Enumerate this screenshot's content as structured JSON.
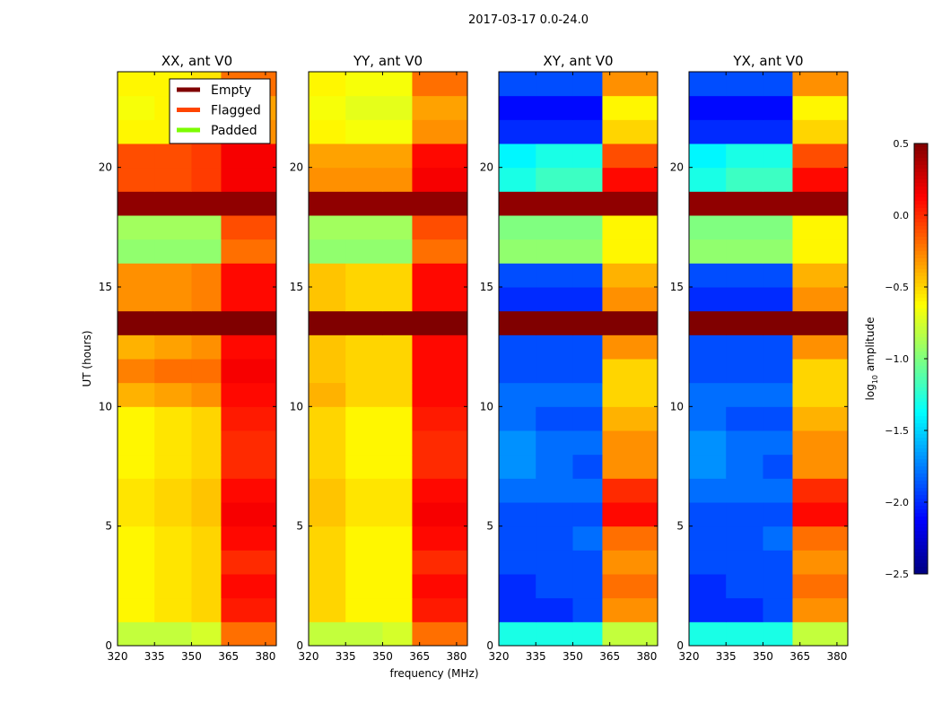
{
  "chart_data": {
    "type": "heatmap",
    "title": "2017-03-17 0.0-24.0",
    "xlabel": "frequency (MHz)",
    "ylabel": "UT (hours)",
    "xlim": [
      320,
      384.4
    ],
    "ylim": [
      0,
      24
    ],
    "xticks": [
      "320",
      "335",
      "350",
      "365",
      "380"
    ],
    "xtick_values": [
      320,
      335,
      350,
      365,
      380
    ],
    "yticks": [
      "0",
      "5",
      "10",
      "15",
      "20"
    ],
    "ytick_values": [
      0,
      5,
      10,
      15,
      20
    ],
    "freq_bands": [
      [
        320,
        335
      ],
      [
        335,
        350
      ],
      [
        350,
        362
      ],
      [
        362,
        384.4
      ]
    ],
    "hour_rows_note": "rows are hours 0-23, columns are freq_bands; values are approximate log10 amplitude",
    "colorbar": {
      "label": "log",
      "label_sub": "10",
      "label_rest": " amplitude",
      "range": [
        -2.5,
        0.5
      ],
      "ticks": [
        "0.5",
        "0.0",
        "−0.5",
        "−1.0",
        "−1.5",
        "−2.0",
        "−2.5"
      ],
      "tick_values": [
        0.5,
        0.0,
        -0.5,
        -1.0,
        -1.5,
        -2.0,
        -2.5
      ]
    },
    "legend": {
      "placement": "top-right of first panel",
      "entries": [
        {
          "label": "Empty",
          "color": "#800000"
        },
        {
          "label": "Flagged",
          "color": "#ff4500"
        },
        {
          "label": "Padded",
          "color": "#7cfc00"
        }
      ]
    },
    "panels": [
      {
        "title": "XX, ant V0",
        "values": [
          [
            -0.8,
            -0.8,
            -0.75,
            -0.2
          ],
          [
            -0.6,
            -0.55,
            -0.5,
            0.05
          ],
          [
            -0.6,
            -0.55,
            -0.5,
            0.1
          ],
          [
            -0.6,
            -0.55,
            -0.5,
            0.0
          ],
          [
            -0.6,
            -0.55,
            -0.5,
            0.1
          ],
          [
            -0.55,
            -0.5,
            -0.45,
            0.15
          ],
          [
            -0.55,
            -0.5,
            -0.45,
            0.1
          ],
          [
            -0.6,
            -0.55,
            -0.5,
            0.0
          ],
          [
            -0.6,
            -0.55,
            -0.5,
            0.0
          ],
          [
            -0.6,
            -0.55,
            -0.5,
            0.05
          ],
          [
            -0.4,
            -0.35,
            -0.3,
            0.1
          ],
          [
            -0.25,
            -0.2,
            -0.2,
            0.15
          ],
          [
            -0.4,
            -0.35,
            -0.3,
            0.1
          ],
          [
            0.5,
            0.5,
            0.5,
            0.5
          ],
          [
            -0.3,
            -0.3,
            -0.25,
            0.1
          ],
          [
            -0.3,
            -0.3,
            -0.25,
            0.1
          ],
          [
            -0.95,
            -0.95,
            -0.95,
            -0.2
          ],
          [
            -0.9,
            -0.9,
            -0.9,
            -0.1
          ],
          [
            0.45,
            0.45,
            0.45,
            0.45
          ],
          [
            -0.1,
            -0.1,
            -0.05,
            0.15
          ],
          [
            -0.1,
            -0.1,
            -0.05,
            0.15
          ],
          [
            -0.6,
            -0.6,
            -0.55,
            -0.3
          ],
          [
            -0.65,
            -0.6,
            -0.6,
            -0.35
          ],
          [
            -0.6,
            -0.6,
            -0.55,
            -0.2
          ]
        ]
      },
      {
        "title": "YY, ant V0",
        "values": [
          [
            -0.8,
            -0.8,
            -0.75,
            -0.2
          ],
          [
            -0.5,
            -0.6,
            -0.6,
            0.05
          ],
          [
            -0.5,
            -0.6,
            -0.6,
            0.1
          ],
          [
            -0.5,
            -0.6,
            -0.6,
            0.0
          ],
          [
            -0.5,
            -0.6,
            -0.6,
            0.1
          ],
          [
            -0.45,
            -0.55,
            -0.55,
            0.15
          ],
          [
            -0.45,
            -0.55,
            -0.55,
            0.1
          ],
          [
            -0.5,
            -0.6,
            -0.6,
            0.0
          ],
          [
            -0.5,
            -0.6,
            -0.6,
            0.0
          ],
          [
            -0.5,
            -0.6,
            -0.6,
            0.05
          ],
          [
            -0.4,
            -0.5,
            -0.5,
            0.1
          ],
          [
            -0.45,
            -0.5,
            -0.5,
            0.1
          ],
          [
            -0.45,
            -0.5,
            -0.5,
            0.1
          ],
          [
            0.5,
            0.5,
            0.5,
            0.5
          ],
          [
            -0.45,
            -0.5,
            -0.5,
            0.1
          ],
          [
            -0.45,
            -0.5,
            -0.5,
            0.1
          ],
          [
            -0.95,
            -0.95,
            -0.95,
            -0.2
          ],
          [
            -0.9,
            -0.9,
            -0.9,
            -0.1
          ],
          [
            0.45,
            0.45,
            0.45,
            0.45
          ],
          [
            -0.3,
            -0.3,
            -0.3,
            0.15
          ],
          [
            -0.35,
            -0.35,
            -0.35,
            0.1
          ],
          [
            -0.6,
            -0.65,
            -0.65,
            -0.3
          ],
          [
            -0.65,
            -0.7,
            -0.7,
            -0.35
          ],
          [
            -0.6,
            -0.65,
            -0.65,
            -0.2
          ]
        ]
      },
      {
        "title": "XY, ant V0",
        "values": [
          [
            -1.3,
            -1.3,
            -1.3,
            -0.8
          ],
          [
            -2.0,
            -2.0,
            -1.9,
            -0.3
          ],
          [
            -2.0,
            -1.9,
            -1.9,
            -0.2
          ],
          [
            -1.9,
            -1.9,
            -1.9,
            -0.3
          ],
          [
            -1.9,
            -1.9,
            -1.8,
            -0.2
          ],
          [
            -1.9,
            -1.9,
            -1.9,
            0.1
          ],
          [
            -1.8,
            -1.8,
            -1.8,
            0.0
          ],
          [
            -1.7,
            -1.8,
            -1.9,
            -0.3
          ],
          [
            -1.7,
            -1.8,
            -1.8,
            -0.3
          ],
          [
            -1.8,
            -1.9,
            -1.9,
            -0.4
          ],
          [
            -1.8,
            -1.8,
            -1.8,
            -0.5
          ],
          [
            -1.9,
            -1.9,
            -1.9,
            -0.5
          ],
          [
            -1.9,
            -1.9,
            -1.9,
            -0.3
          ],
          [
            0.5,
            0.5,
            0.5,
            0.5
          ],
          [
            -2.0,
            -2.0,
            -2.0,
            -0.3
          ],
          [
            -1.9,
            -1.9,
            -1.9,
            -0.4
          ],
          [
            -0.95,
            -0.95,
            -0.95,
            -0.6
          ],
          [
            -1.0,
            -1.0,
            -1.0,
            -0.6
          ],
          [
            0.45,
            0.45,
            0.45,
            0.45
          ],
          [
            -1.3,
            -1.2,
            -1.2,
            0.1
          ],
          [
            -1.4,
            -1.3,
            -1.3,
            -0.1
          ],
          [
            -2.0,
            -2.0,
            -2.0,
            -0.5
          ],
          [
            -2.1,
            -2.1,
            -2.1,
            -0.6
          ],
          [
            -1.9,
            -1.9,
            -1.9,
            -0.3
          ]
        ]
      },
      {
        "title": "YX, ant V0",
        "values": [
          [
            -1.3,
            -1.3,
            -1.3,
            -0.8
          ],
          [
            -2.0,
            -2.0,
            -1.9,
            -0.3
          ],
          [
            -2.0,
            -1.9,
            -1.9,
            -0.2
          ],
          [
            -1.9,
            -1.9,
            -1.9,
            -0.3
          ],
          [
            -1.9,
            -1.9,
            -1.8,
            -0.2
          ],
          [
            -1.9,
            -1.9,
            -1.9,
            0.1
          ],
          [
            -1.8,
            -1.8,
            -1.8,
            0.0
          ],
          [
            -1.7,
            -1.8,
            -1.9,
            -0.3
          ],
          [
            -1.7,
            -1.8,
            -1.8,
            -0.3
          ],
          [
            -1.8,
            -1.9,
            -1.9,
            -0.4
          ],
          [
            -1.8,
            -1.8,
            -1.8,
            -0.5
          ],
          [
            -1.9,
            -1.9,
            -1.9,
            -0.5
          ],
          [
            -1.9,
            -1.9,
            -1.9,
            -0.3
          ],
          [
            0.5,
            0.5,
            0.5,
            0.5
          ],
          [
            -2.0,
            -2.0,
            -2.0,
            -0.3
          ],
          [
            -1.9,
            -1.9,
            -1.9,
            -0.4
          ],
          [
            -0.95,
            -0.95,
            -0.95,
            -0.6
          ],
          [
            -1.0,
            -1.0,
            -1.0,
            -0.6
          ],
          [
            0.45,
            0.45,
            0.45,
            0.45
          ],
          [
            -1.3,
            -1.2,
            -1.2,
            0.1
          ],
          [
            -1.4,
            -1.3,
            -1.3,
            -0.1
          ],
          [
            -2.0,
            -2.0,
            -2.0,
            -0.5
          ],
          [
            -2.1,
            -2.1,
            -2.1,
            -0.6
          ],
          [
            -1.9,
            -1.9,
            -1.9,
            -0.3
          ]
        ]
      }
    ]
  }
}
